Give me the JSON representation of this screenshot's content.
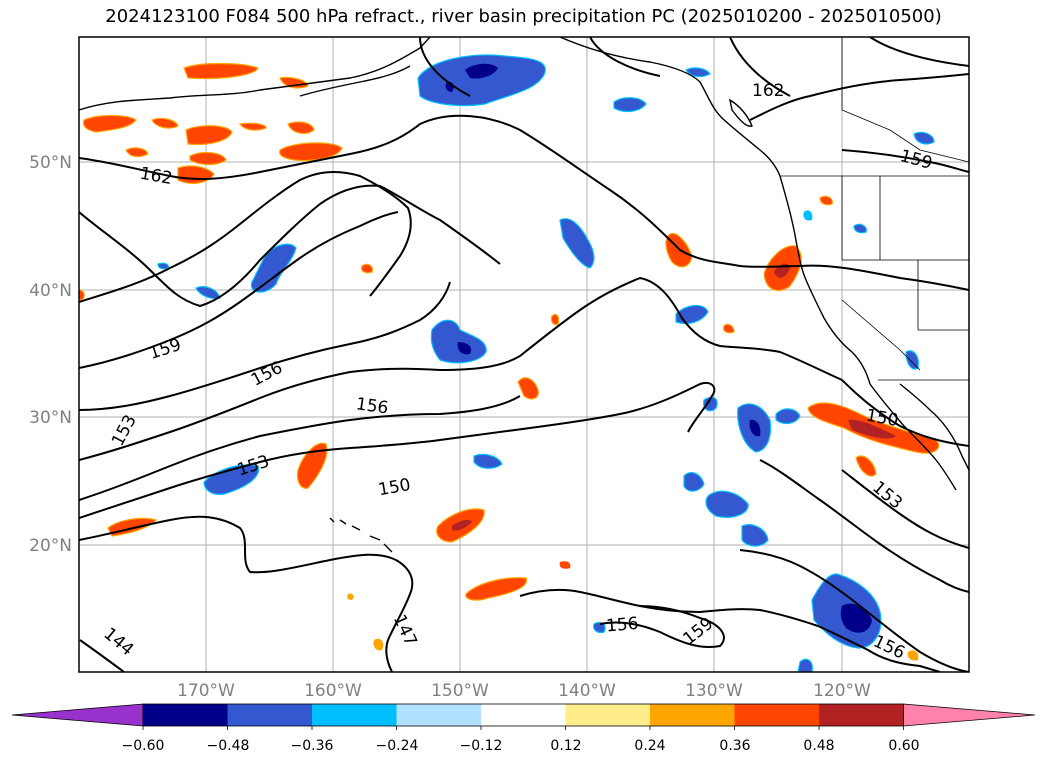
{
  "title": "2024123100 F084 500 hPa refract., river basin precipitation PC (2025010200 - 2025010500)",
  "map": {
    "lat_labels": [
      "50°N",
      "40°N",
      "30°N",
      "20°N"
    ],
    "lon_labels": [
      "170°W",
      "160°W",
      "150°W",
      "140°W",
      "130°W",
      "120°W"
    ],
    "contour_labels": [
      "162",
      "162",
      "159",
      "159",
      "156",
      "156",
      "156",
      "156",
      "153",
      "153",
      "153",
      "150",
      "150",
      "147",
      "144"
    ],
    "contour_levels": [
      144,
      147,
      150,
      153,
      156,
      159,
      162
    ]
  },
  "colorbar": {
    "tick_labels": [
      "−0.60",
      "−0.48",
      "−0.36",
      "−0.24",
      "−0.12",
      "0.12",
      "0.24",
      "0.36",
      "0.48",
      "0.60"
    ],
    "colors": [
      "#9932cc",
      "#00008b",
      "#3358cf",
      "#00bfff",
      "#b0e2ff",
      "#ffffff",
      "#ffec8b",
      "#ffa500",
      "#ff4500",
      "#b22222",
      "#ff82ab"
    ]
  }
}
